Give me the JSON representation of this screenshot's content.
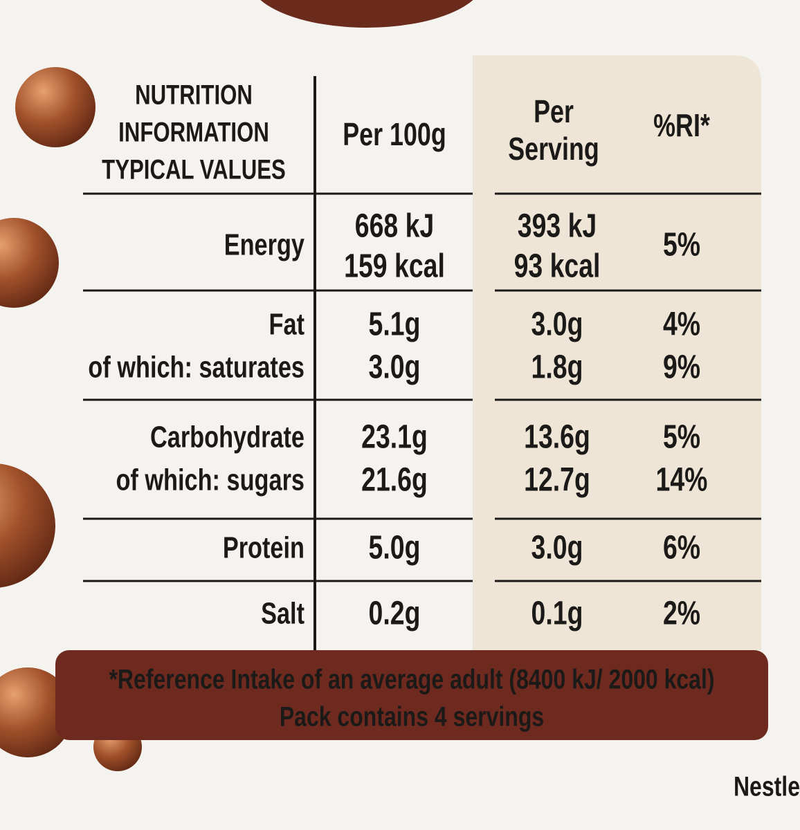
{
  "header": {
    "nutrition": [
      "NUTRITION",
      "INFORMATION",
      "TYPICAL VALUES"
    ],
    "per_100g": [
      "Per 100g"
    ],
    "per_serving": [
      "Per",
      "Serving"
    ],
    "ri": [
      "%RI*"
    ]
  },
  "rows": [
    {
      "nutrient": [
        "Energy"
      ],
      "per_100g": [
        "668 kJ",
        "159 kcal"
      ],
      "per_serving": [
        "393 kJ",
        "93 kcal"
      ],
      "ri": [
        "5%"
      ]
    },
    {
      "nutrient": [
        "Fat",
        "of which: saturates"
      ],
      "per_100g": [
        "5.1g",
        "3.0g"
      ],
      "per_serving": [
        "3.0g",
        "1.8g"
      ],
      "ri": [
        "4%",
        "9%"
      ]
    },
    {
      "nutrient": [
        "Carbohydrate",
        "of which: sugars"
      ],
      "per_100g": [
        "23.1g",
        "21.6g"
      ],
      "per_serving": [
        "13.6g",
        "12.7g"
      ],
      "ri": [
        "5%",
        "14%"
      ]
    },
    {
      "nutrient": [
        "Protein"
      ],
      "per_100g": [
        "5.0g"
      ],
      "per_serving": [
        "3.0g"
      ],
      "ri": [
        "6%"
      ]
    },
    {
      "nutrient": [
        "Salt"
      ],
      "per_100g": [
        "0.2g"
      ],
      "per_serving": [
        "0.1g"
      ],
      "ri": [
        "2%"
      ]
    }
  ],
  "footer": [
    "*Reference Intake of an average adult (8400 kJ/ 2000 kcal)",
    "Pack contains 4 servings"
  ],
  "brand": "Nestle"
}
